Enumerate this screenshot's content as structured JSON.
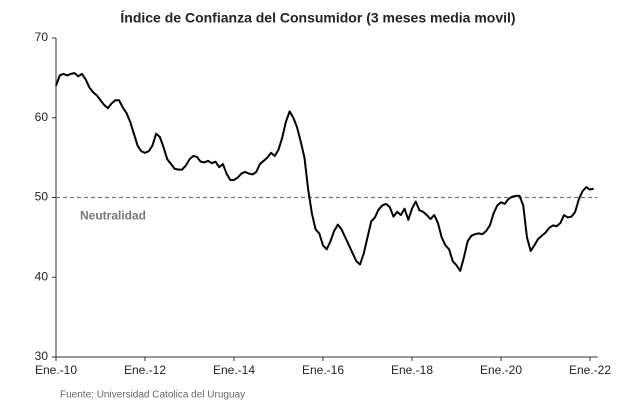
{
  "chart_data": {
    "type": "line",
    "title": "Índice de Confianza del Consumidor (3 meses media movil)",
    "source": "Fuente: Universidad Catolica del Uruguay",
    "x": [
      "2010-01",
      "2010-02",
      "2010-03",
      "2010-04",
      "2010-05",
      "2010-06",
      "2010-07",
      "2010-08",
      "2010-09",
      "2010-10",
      "2010-11",
      "2010-12",
      "2011-01",
      "2011-02",
      "2011-03",
      "2011-04",
      "2011-05",
      "2011-06",
      "2011-07",
      "2011-08",
      "2011-09",
      "2011-10",
      "2011-11",
      "2011-12",
      "2012-01",
      "2012-02",
      "2012-03",
      "2012-04",
      "2012-05",
      "2012-06",
      "2012-07",
      "2012-08",
      "2012-09",
      "2012-10",
      "2012-11",
      "2012-12",
      "2013-01",
      "2013-02",
      "2013-03",
      "2013-04",
      "2013-05",
      "2013-06",
      "2013-07",
      "2013-08",
      "2013-09",
      "2013-10",
      "2013-11",
      "2013-12",
      "2014-01",
      "2014-02",
      "2014-03",
      "2014-04",
      "2014-05",
      "2014-06",
      "2014-07",
      "2014-08",
      "2014-09",
      "2014-10",
      "2014-11",
      "2014-12",
      "2015-01",
      "2015-02",
      "2015-03",
      "2015-04",
      "2015-05",
      "2015-06",
      "2015-07",
      "2015-08",
      "2015-09",
      "2015-10",
      "2015-11",
      "2015-12",
      "2016-01",
      "2016-02",
      "2016-03",
      "2016-04",
      "2016-05",
      "2016-06",
      "2016-07",
      "2016-08",
      "2016-09",
      "2016-10",
      "2016-11",
      "2016-12",
      "2017-01",
      "2017-02",
      "2017-03",
      "2017-04",
      "2017-05",
      "2017-06",
      "2017-07",
      "2017-08",
      "2017-09",
      "2017-10",
      "2017-11",
      "2017-12",
      "2018-01",
      "2018-02",
      "2018-03",
      "2018-04",
      "2018-05",
      "2018-06",
      "2018-07",
      "2018-08",
      "2018-09",
      "2018-10",
      "2018-11",
      "2018-12",
      "2019-01",
      "2019-02",
      "2019-03",
      "2019-04",
      "2019-05",
      "2019-06",
      "2019-07",
      "2019-08",
      "2019-09",
      "2019-10",
      "2019-11",
      "2019-12",
      "2020-01",
      "2020-02",
      "2020-03",
      "2020-04",
      "2020-05",
      "2020-06",
      "2020-07",
      "2020-08",
      "2020-09",
      "2020-10",
      "2020-11",
      "2020-12",
      "2021-01",
      "2021-02",
      "2021-03",
      "2021-04",
      "2021-05",
      "2021-06",
      "2021-07",
      "2021-08",
      "2021-09",
      "2021-10",
      "2021-11",
      "2021-12",
      "2022-01",
      "2022-02"
    ],
    "series": [
      {
        "name": "Índice de Confianza del Consumidor",
        "color": "#000000",
        "values": [
          64,
          65.3,
          65.5,
          65.3,
          65.5,
          65.6,
          65.2,
          65.5,
          64.8,
          63.8,
          63.2,
          62.8,
          62.2,
          61.6,
          61.2,
          61.8,
          62.2,
          62.2,
          61.3,
          60.6,
          59.5,
          58,
          56.5,
          55.8,
          55.6,
          55.8,
          56.5,
          58,
          57.6,
          56.3,
          54.8,
          54.2,
          53.6,
          53.5,
          53.5,
          54,
          54.8,
          55.2,
          55.1,
          54.5,
          54.4,
          54.6,
          54.3,
          54.5,
          53.8,
          54.2,
          53,
          52.2,
          52.2,
          52.5,
          53,
          53.2,
          53,
          52.9,
          53.2,
          54.2,
          54.6,
          55,
          55.6,
          55.2,
          56,
          57.5,
          59.5,
          60.8,
          60,
          58.8,
          57,
          55,
          51,
          48,
          46,
          45.5,
          44,
          43.5,
          44.5,
          45.8,
          46.6,
          46,
          45,
          44,
          43,
          42,
          41.6,
          43,
          45,
          47,
          47.5,
          48.5,
          49,
          49.2,
          48.8,
          47.6,
          48.2,
          47.8,
          48.6,
          47.2,
          48.6,
          49.5,
          48.4,
          48.2,
          47.8,
          47.3,
          47.8,
          46.8,
          45,
          44,
          43.5,
          42,
          41.5,
          40.8,
          42.5,
          44.5,
          45.2,
          45.4,
          45.5,
          45.4,
          45.8,
          46.5,
          48,
          49,
          49.4,
          49.2,
          49.8,
          50.1,
          50.2,
          50.2,
          49,
          45,
          43.3,
          44,
          44.8,
          45.2,
          45.6,
          46.2,
          46.5,
          46.4,
          46.8,
          47.8,
          47.5,
          47.6,
          48.2,
          49.8,
          50.8,
          51.3,
          51,
          51.1
        ]
      }
    ],
    "ylim": [
      30,
      70
    ],
    "yticks": [
      30,
      40,
      50,
      60,
      70
    ],
    "xticks": [
      {
        "value": "2010-01",
        "label": "Ene.-10"
      },
      {
        "value": "2012-01",
        "label": "Ene.-12"
      },
      {
        "value": "2014-01",
        "label": "Ene.-14"
      },
      {
        "value": "2016-01",
        "label": "Ene.-16"
      },
      {
        "value": "2018-01",
        "label": "Ene.-18"
      },
      {
        "value": "2020-01",
        "label": "Ene.-20"
      },
      {
        "value": "2022-01",
        "label": "Ene.-22"
      }
    ],
    "reference_line": {
      "value": 50,
      "label": "Neutralidad",
      "color": "#777777"
    },
    "grid": false
  }
}
